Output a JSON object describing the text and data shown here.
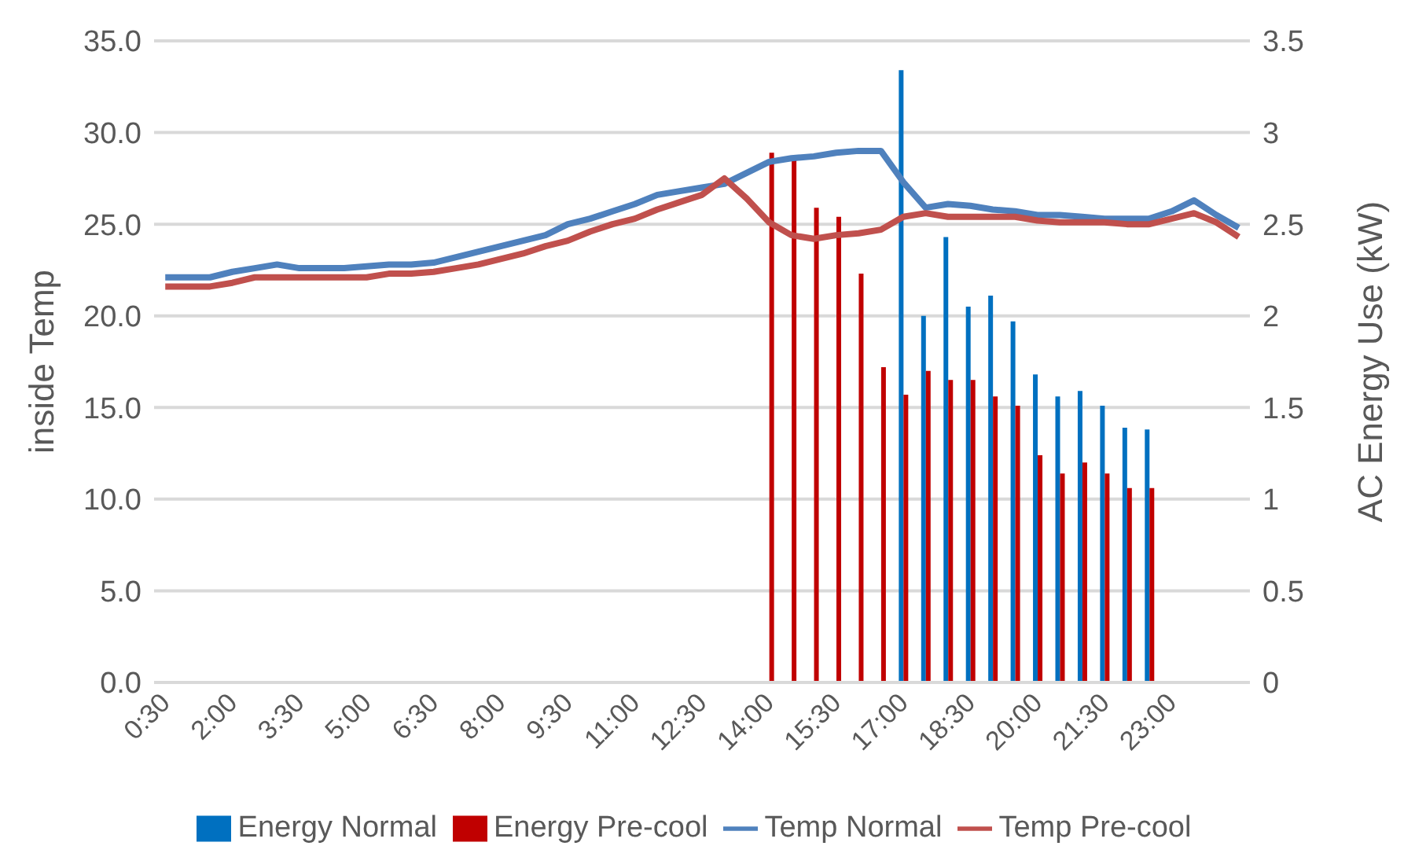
{
  "chart_data": {
    "type": "bar",
    "ylabel": "inside Temp",
    "y2label": "AC Energy Use (kW)",
    "categories": [
      "0:30",
      null,
      null,
      "2:00",
      null,
      null,
      "3:30",
      null,
      null,
      "5:00",
      null,
      null,
      "6:30",
      null,
      null,
      "8:00",
      null,
      null,
      "9:30",
      null,
      null,
      "11:00",
      null,
      null,
      "12:30",
      null,
      null,
      "14:00",
      null,
      null,
      "15:30",
      null,
      null,
      "17:00",
      null,
      null,
      "18:30",
      null,
      null,
      "20:00",
      null,
      null,
      "21:30",
      null,
      null,
      "23:00",
      null,
      null,
      null
    ],
    "series": [
      {
        "name": "Energy Normal",
        "axis": "y2",
        "color": "#0070c0",
        "values": [
          null,
          null,
          null,
          null,
          null,
          null,
          null,
          null,
          null,
          null,
          null,
          null,
          null,
          null,
          null,
          null,
          null,
          null,
          null,
          null,
          null,
          null,
          null,
          null,
          null,
          null,
          null,
          null,
          null,
          null,
          null,
          null,
          null,
          3.34,
          2.0,
          2.43,
          2.05,
          2.11,
          1.97,
          1.68,
          1.56,
          1.59,
          1.51,
          1.39,
          1.38,
          null,
          null,
          null,
          null
        ]
      },
      {
        "name": "Energy Pre-cool",
        "axis": "y2",
        "color": "#c00000",
        "values": [
          null,
          null,
          null,
          null,
          null,
          null,
          null,
          null,
          null,
          null,
          null,
          null,
          null,
          null,
          null,
          null,
          null,
          null,
          null,
          null,
          null,
          null,
          null,
          null,
          null,
          null,
          null,
          2.89,
          2.85,
          2.59,
          2.54,
          2.23,
          1.72,
          1.57,
          1.7,
          1.65,
          1.65,
          1.56,
          1.51,
          1.24,
          1.14,
          1.2,
          1.14,
          1.06,
          1.06,
          null,
          null,
          null,
          null
        ]
      },
      {
        "name": "Temp Normal",
        "type": "line",
        "color": "#4f81bd",
        "values": [
          22.1,
          22.1,
          22.1,
          22.4,
          22.6,
          22.8,
          22.6,
          22.6,
          22.6,
          22.7,
          22.8,
          22.8,
          22.9,
          23.2,
          23.5,
          23.8,
          24.1,
          24.4,
          25.0,
          25.3,
          25.7,
          26.1,
          26.6,
          26.8,
          27.0,
          27.2,
          27.8,
          28.4,
          28.6,
          28.7,
          28.9,
          29.0,
          29.0,
          27.3,
          25.9,
          26.1,
          26.0,
          25.8,
          25.7,
          25.5,
          25.5,
          25.4,
          25.3,
          25.3,
          25.3,
          25.7,
          26.3,
          25.5,
          24.8
        ]
      },
      {
        "name": "Temp Pre-cool",
        "type": "line",
        "color": "#c0504d",
        "values": [
          21.6,
          21.6,
          21.6,
          21.8,
          22.1,
          22.1,
          22.1,
          22.1,
          22.1,
          22.1,
          22.3,
          22.3,
          22.4,
          22.6,
          22.8,
          23.1,
          23.4,
          23.8,
          24.1,
          24.6,
          25.0,
          25.3,
          25.8,
          26.2,
          26.6,
          27.5,
          26.4,
          25.1,
          24.4,
          24.2,
          24.4,
          24.5,
          24.7,
          25.4,
          25.6,
          25.4,
          25.4,
          25.4,
          25.4,
          25.2,
          25.1,
          25.1,
          25.1,
          25.0,
          25.0,
          25.3,
          25.6,
          25.1,
          24.3
        ]
      }
    ],
    "ylim": [
      0,
      35
    ],
    "yticks": [
      {
        "value": 0,
        "label": "0.0"
      },
      {
        "value": 5,
        "label": "5.0"
      },
      {
        "value": 10,
        "label": "10.0"
      },
      {
        "value": 15,
        "label": "15.0"
      },
      {
        "value": 20,
        "label": "20.0"
      },
      {
        "value": 25,
        "label": "25.0"
      },
      {
        "value": 30,
        "label": "30.0"
      },
      {
        "value": 35,
        "label": "35.0"
      }
    ],
    "y2lim": [
      0,
      3.5
    ],
    "y2ticks": [
      0,
      0.5,
      1,
      1.5,
      2,
      2.5,
      3,
      3.5
    ],
    "grid": "y",
    "legend": "bottom",
    "marker": "none",
    "line_style": "solid"
  }
}
